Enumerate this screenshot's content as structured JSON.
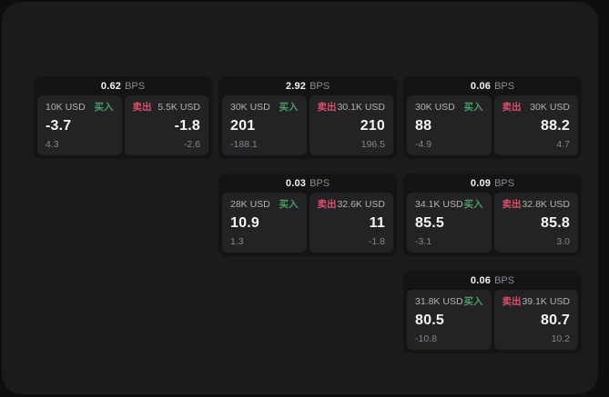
{
  "colors": {
    "buy": "#4a9e63",
    "sell": "#dd5068",
    "panel_bg": "#1b1b1d",
    "card_bg": "#141416",
    "tile_bg": "#232326"
  },
  "bps_unit_label": "BPS",
  "cards": [
    {
      "grid": {
        "row": 1,
        "col": 1
      },
      "bps_value": "0.62",
      "bps_unit": "BPS",
      "buy": {
        "amount": "10K USD",
        "tag": "买入",
        "value": "-3.7",
        "sub": "4.3"
      },
      "sell": {
        "tag": "卖出",
        "amount": "5.5K USD",
        "value": "-1.8",
        "sub": "-2.6"
      }
    },
    {
      "grid": {
        "row": 1,
        "col": 2
      },
      "bps_value": "2.92",
      "bps_unit": "BPS",
      "buy": {
        "amount": "30K USD",
        "tag": "买入",
        "value": "201",
        "sub": "-188.1"
      },
      "sell": {
        "tag": "卖出",
        "amount": "30.1K USD",
        "value": "210",
        "sub": "196.5"
      }
    },
    {
      "grid": {
        "row": 1,
        "col": 3
      },
      "bps_value": "0.06",
      "bps_unit": "BPS",
      "buy": {
        "amount": "30K USD",
        "tag": "买入",
        "value": "88",
        "sub": "-4.9"
      },
      "sell": {
        "tag": "卖出",
        "amount": "30K USD",
        "value": "88.2",
        "sub": "4.7"
      }
    },
    {
      "grid": {
        "row": 2,
        "col": 2
      },
      "bps_value": "0.03",
      "bps_unit": "BPS",
      "buy": {
        "amount": "28K USD",
        "tag": "买入",
        "value": "10.9",
        "sub": "1.3"
      },
      "sell": {
        "tag": "卖出",
        "amount": "32.6K USD",
        "value": "11",
        "sub": "-1.8"
      }
    },
    {
      "grid": {
        "row": 2,
        "col": 3
      },
      "bps_value": "0.09",
      "bps_unit": "BPS",
      "buy": {
        "amount": "34.1K USD",
        "tag": "买入",
        "value": "85.5",
        "sub": "-3.1"
      },
      "sell": {
        "tag": "卖出",
        "amount": "32.8K USD",
        "value": "85.8",
        "sub": "3.0"
      }
    },
    {
      "grid": {
        "row": 3,
        "col": 3
      },
      "bps_value": "0.06",
      "bps_unit": "BPS",
      "buy": {
        "amount": "31.8K USD",
        "tag": "买入",
        "value": "80.5",
        "sub": "-10.8"
      },
      "sell": {
        "tag": "卖出",
        "amount": "39.1K USD",
        "value": "80.7",
        "sub": "10.2"
      }
    }
  ]
}
